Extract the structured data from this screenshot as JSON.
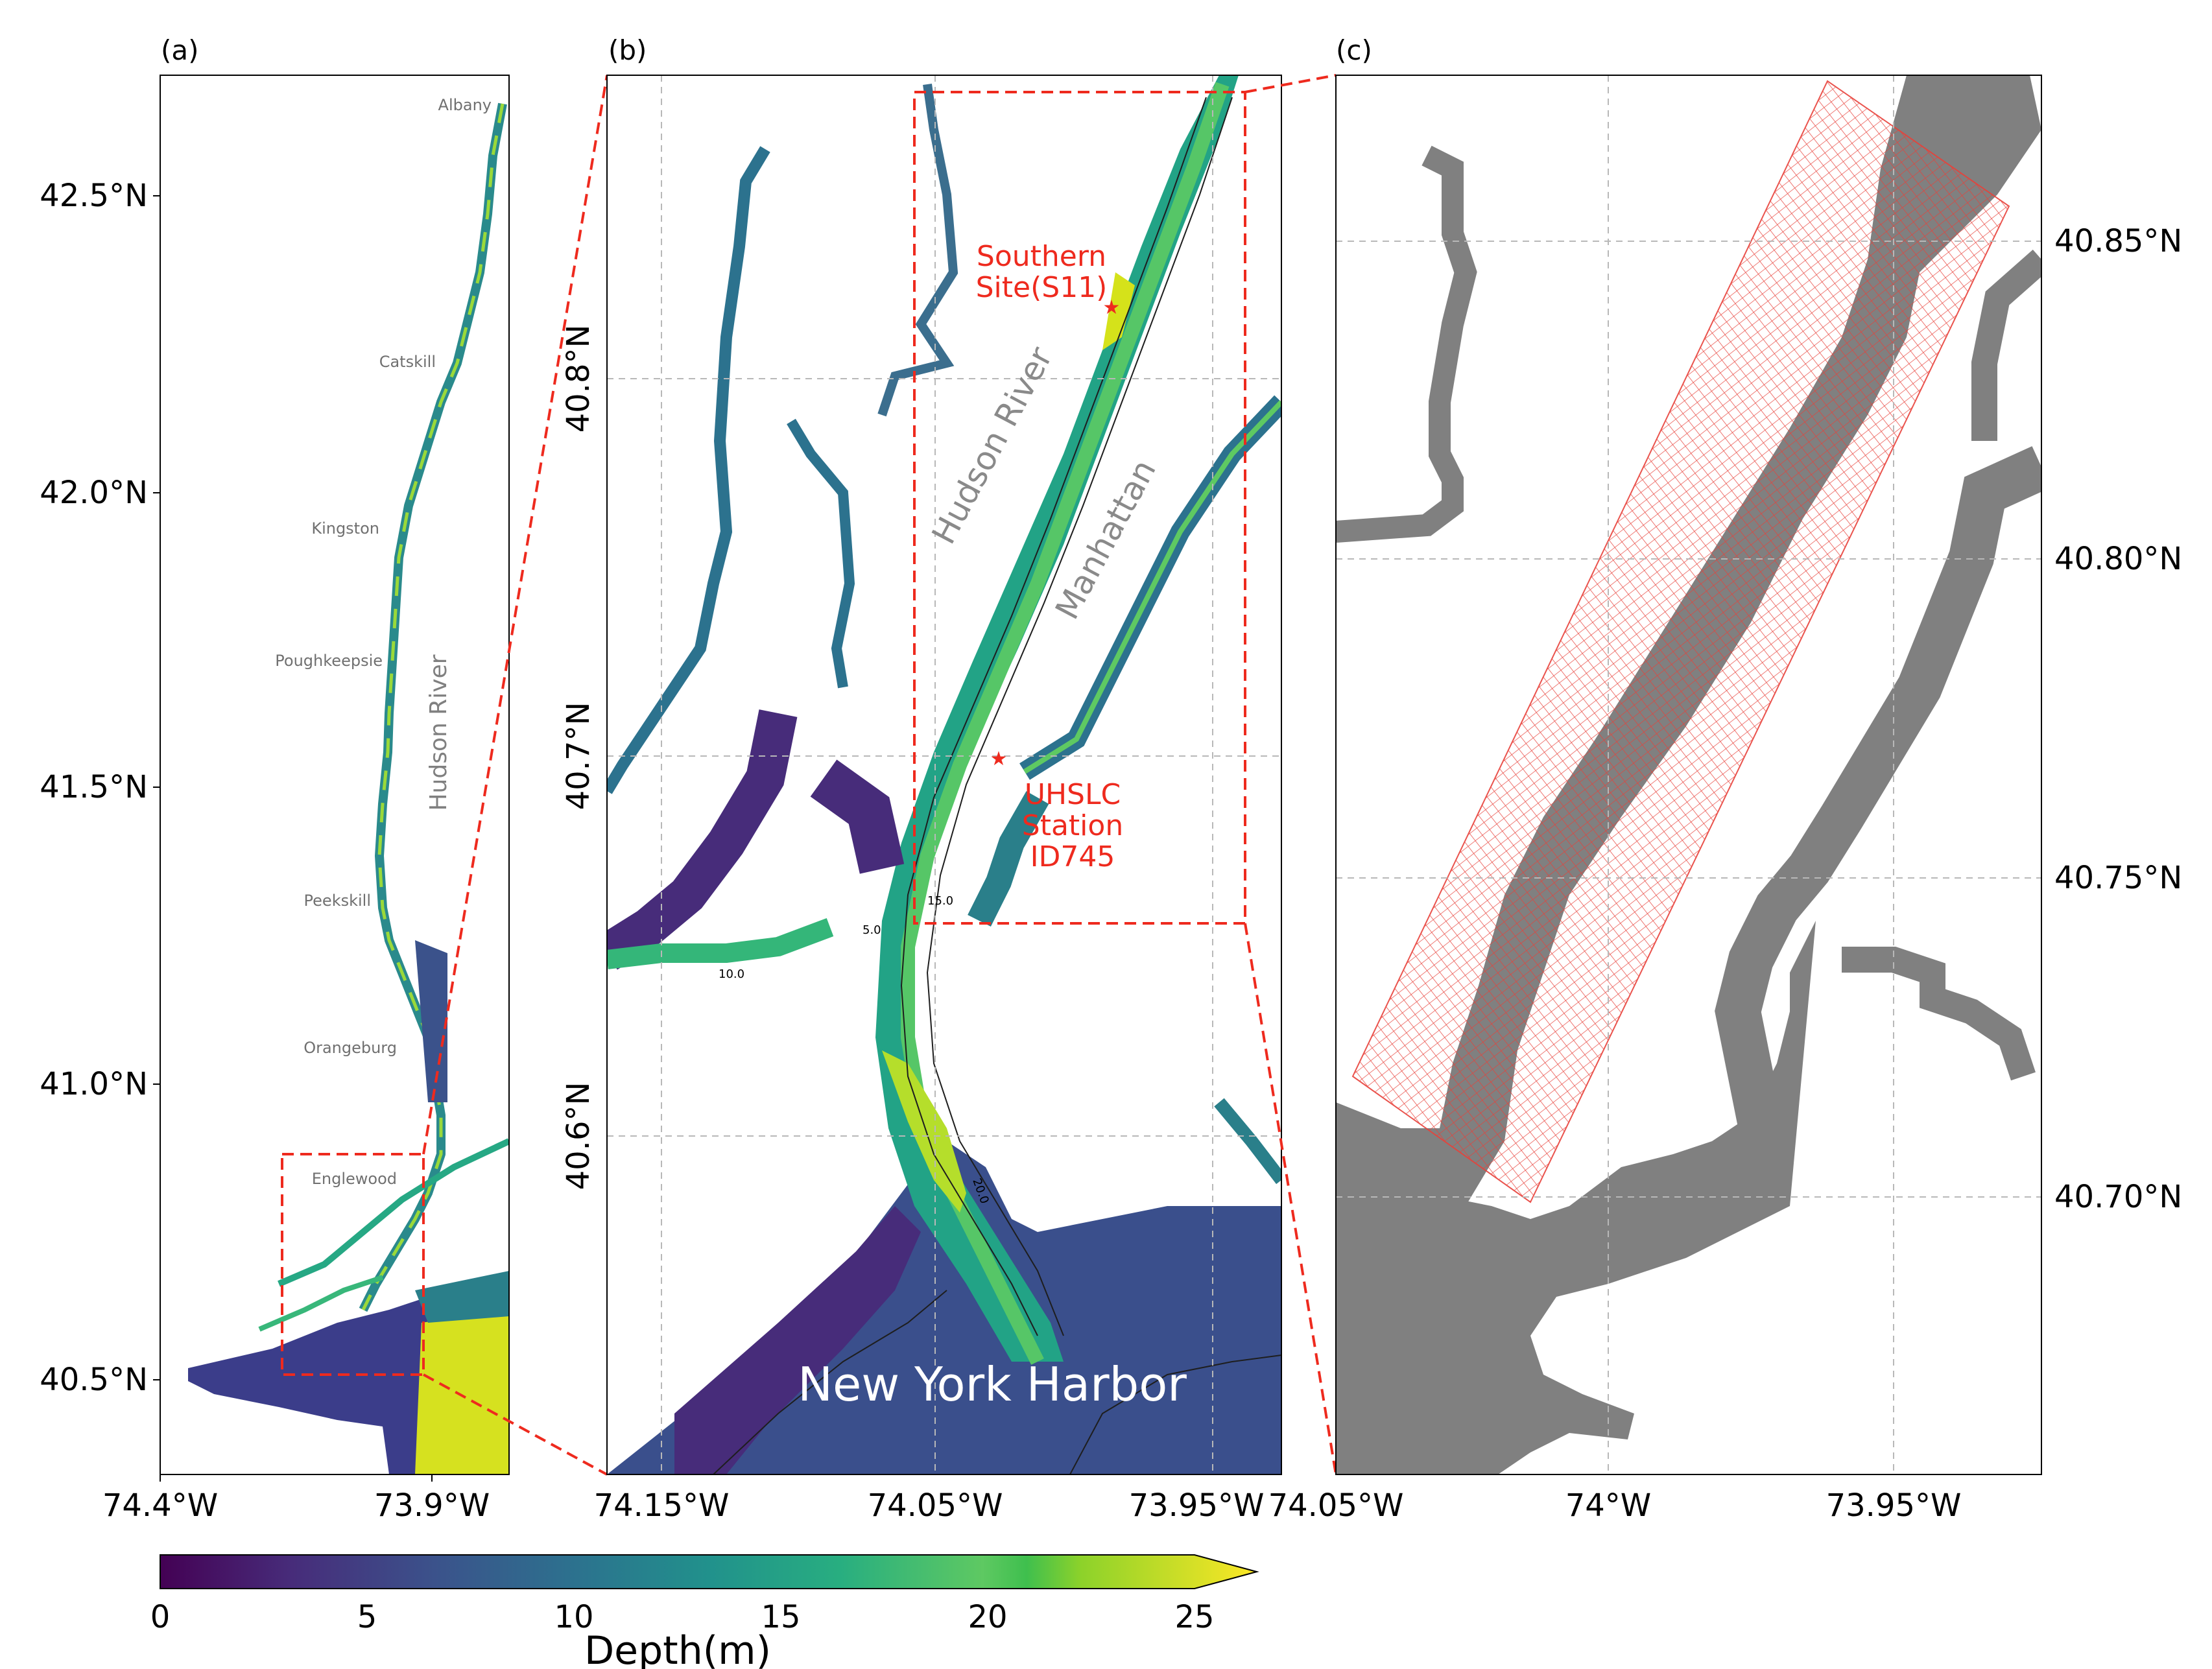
{
  "panels": {
    "a": {
      "label": "(a)"
    },
    "b": {
      "label": "(b)"
    },
    "c": {
      "label": "(c)"
    }
  },
  "panel_a": {
    "y_ticks": [
      "42.5°N",
      "42.0°N",
      "41.5°N",
      "41.0°N",
      "40.5°N"
    ],
    "x_ticks": [
      "74.4°W",
      "73.9°W"
    ],
    "cities": [
      "Albany",
      "Catskill",
      "Kingston",
      "Poughkeepsie",
      "Peekskill",
      "Orangeburg",
      "Englewood"
    ],
    "river_label": "Hudson River"
  },
  "panel_b": {
    "y_ticks": [
      "40.8°N",
      "40.7°N",
      "40.6°N"
    ],
    "x_ticks": [
      "74.15°W",
      "74.05°W",
      "73.95°W"
    ],
    "labels": {
      "hudson": "Hudson River",
      "manhattan": "Manhattan",
      "harbor": "New York Harbor",
      "southern_site_1": "Southern",
      "southern_site_2": "Site(S11)",
      "uhslc_1": "UHSLC",
      "uhslc_2": "Station",
      "uhslc_3": "ID745"
    },
    "contour_labels": [
      "5.0",
      "10.0",
      "15.0",
      "20.0"
    ]
  },
  "panel_c": {
    "y_ticks": [
      "40.85°N",
      "40.80°N",
      "40.75°N",
      "40.70°N"
    ],
    "x_ticks": [
      "74.05°W",
      "74°W",
      "73.95°W"
    ]
  },
  "colorbar": {
    "ticks": [
      "0",
      "5",
      "10",
      "15",
      "20",
      "25"
    ],
    "label": "Depth(m)",
    "colormap": "viridis-yellow-extended"
  },
  "colors": {
    "zoom_box": "#ee2a1e",
    "grid_mesh": "#e8413a",
    "land_mask": "#808080",
    "site_marker": "#ee2a1e"
  }
}
